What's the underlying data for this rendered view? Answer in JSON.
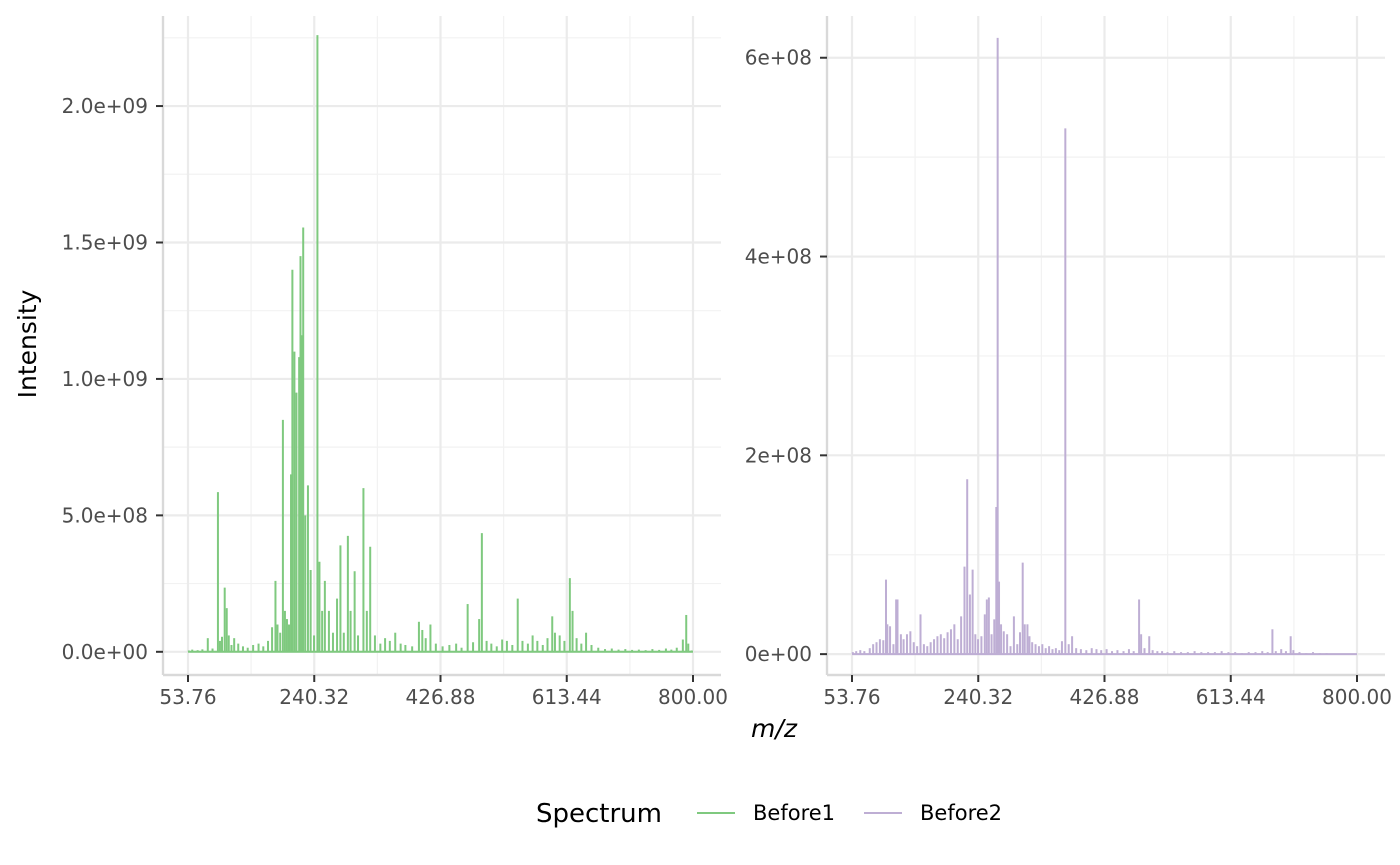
{
  "chart_data": {
    "type": "line",
    "xlabel": "m/z",
    "ylabel": "Intensity",
    "x_ticks": [
      "53.76",
      "240.32",
      "426.88",
      "613.44",
      "800.00"
    ],
    "x_tick_values": [
      53.76,
      240.32,
      426.88,
      613.44,
      800.0
    ],
    "xlim": [
      53.76,
      800.0
    ],
    "legend": {
      "title": "Spectrum",
      "placement": "bottom",
      "entries": [
        "Before1",
        "Before2"
      ]
    },
    "grid": true,
    "panels": [
      {
        "series_name": "Before1",
        "color": "#7fc97f",
        "y_ticks": [
          "0.0e+00",
          "5.0e+08",
          "1.0e+09",
          "1.5e+09",
          "2.0e+09"
        ],
        "y_tick_values": [
          0,
          500000000,
          1000000000,
          1500000000,
          2000000000
        ],
        "ylim": [
          -85000000,
          2330000000
        ],
        "peaks": [
          [
            55,
            5000000
          ],
          [
            60,
            8000000
          ],
          [
            68,
            6000000
          ],
          [
            75,
            9000000
          ],
          [
            83,
            50000000
          ],
          [
            90,
            12000000
          ],
          [
            98,
            585000000
          ],
          [
            101,
            40000000
          ],
          [
            104,
            55000000
          ],
          [
            108,
            235000000
          ],
          [
            111,
            160000000
          ],
          [
            114,
            60000000
          ],
          [
            118,
            25000000
          ],
          [
            122,
            50000000
          ],
          [
            128,
            30000000
          ],
          [
            135,
            20000000
          ],
          [
            142,
            15000000
          ],
          [
            150,
            25000000
          ],
          [
            158,
            30000000
          ],
          [
            165,
            20000000
          ],
          [
            172,
            40000000
          ],
          [
            178,
            90000000
          ],
          [
            183,
            260000000
          ],
          [
            186,
            100000000
          ],
          [
            190,
            70000000
          ],
          [
            194,
            850000000
          ],
          [
            197,
            150000000
          ],
          [
            200,
            120000000
          ],
          [
            203,
            100000000
          ],
          [
            206,
            650000000
          ],
          [
            208,
            1400000000
          ],
          [
            211,
            1100000000
          ],
          [
            214,
            950000000
          ],
          [
            218,
            1080000000
          ],
          [
            220,
            1450000000
          ],
          [
            222,
            1160000000
          ],
          [
            224,
            1555000000
          ],
          [
            227,
            500000000
          ],
          [
            231,
            610000000
          ],
          [
            235,
            300000000
          ],
          [
            240,
            60000000
          ],
          [
            245,
            2260000000
          ],
          [
            248,
            330000000
          ],
          [
            252,
            150000000
          ],
          [
            256,
            260000000
          ],
          [
            262,
            150000000
          ],
          [
            268,
            70000000
          ],
          [
            274,
            195000000
          ],
          [
            279,
            390000000
          ],
          [
            284,
            70000000
          ],
          [
            290,
            425000000
          ],
          [
            294,
            150000000
          ],
          [
            300,
            295000000
          ],
          [
            305,
            60000000
          ],
          [
            313,
            600000000
          ],
          [
            318,
            150000000
          ],
          [
            323,
            385000000
          ],
          [
            330,
            60000000
          ],
          [
            338,
            30000000
          ],
          [
            345,
            50000000
          ],
          [
            352,
            40000000
          ],
          [
            360,
            70000000
          ],
          [
            368,
            30000000
          ],
          [
            375,
            25000000
          ],
          [
            385,
            20000000
          ],
          [
            395,
            110000000
          ],
          [
            400,
            80000000
          ],
          [
            405,
            50000000
          ],
          [
            412,
            100000000
          ],
          [
            420,
            30000000
          ],
          [
            430,
            20000000
          ],
          [
            440,
            25000000
          ],
          [
            450,
            30000000
          ],
          [
            458,
            15000000
          ],
          [
            467,
            175000000
          ],
          [
            475,
            35000000
          ],
          [
            484,
            120000000
          ],
          [
            488,
            435000000
          ],
          [
            495,
            40000000
          ],
          [
            502,
            30000000
          ],
          [
            510,
            20000000
          ],
          [
            518,
            45000000
          ],
          [
            525,
            40000000
          ],
          [
            533,
            25000000
          ],
          [
            541,
            195000000
          ],
          [
            548,
            40000000
          ],
          [
            556,
            30000000
          ],
          [
            563,
            60000000
          ],
          [
            570,
            40000000
          ],
          [
            578,
            25000000
          ],
          [
            585,
            50000000
          ],
          [
            592,
            130000000
          ],
          [
            596,
            70000000
          ],
          [
            603,
            60000000
          ],
          [
            610,
            40000000
          ],
          [
            618,
            270000000
          ],
          [
            622,
            150000000
          ],
          [
            628,
            50000000
          ],
          [
            635,
            30000000
          ],
          [
            642,
            70000000
          ],
          [
            650,
            25000000
          ],
          [
            660,
            15000000
          ],
          [
            670,
            10000000
          ],
          [
            680,
            12000000
          ],
          [
            690,
            8000000
          ],
          [
            700,
            10000000
          ],
          [
            710,
            7000000
          ],
          [
            720,
            8000000
          ],
          [
            730,
            6000000
          ],
          [
            740,
            10000000
          ],
          [
            750,
            7000000
          ],
          [
            760,
            12000000
          ],
          [
            768,
            8000000
          ],
          [
            776,
            15000000
          ],
          [
            785,
            45000000
          ],
          [
            790,
            135000000
          ],
          [
            793,
            30000000
          ],
          [
            798,
            5000000
          ]
        ]
      },
      {
        "series_name": "Before2",
        "color": "#beaed4",
        "y_ticks": [
          "0e+00",
          "2e+08",
          "4e+08",
          "6e+08"
        ],
        "y_tick_values": [
          0,
          200000000,
          400000000,
          600000000
        ],
        "ylim": [
          -21000000,
          642000000
        ],
        "peaks": [
          [
            55,
            2000000
          ],
          [
            60,
            3000000
          ],
          [
            66,
            4000000
          ],
          [
            72,
            3000000
          ],
          [
            80,
            6000000
          ],
          [
            85,
            10000000
          ],
          [
            90,
            12000000
          ],
          [
            95,
            15000000
          ],
          [
            100,
            14000000
          ],
          [
            104,
            75000000
          ],
          [
            106,
            30000000
          ],
          [
            110,
            28000000
          ],
          [
            115,
            10000000
          ],
          [
            119,
            55000000
          ],
          [
            121,
            55000000
          ],
          [
            126,
            20000000
          ],
          [
            130,
            15000000
          ],
          [
            135,
            20000000
          ],
          [
            140,
            23000000
          ],
          [
            145,
            12000000
          ],
          [
            150,
            8000000
          ],
          [
            155,
            40000000
          ],
          [
            160,
            10000000
          ],
          [
            165,
            8000000
          ],
          [
            170,
            12000000
          ],
          [
            175,
            15000000
          ],
          [
            180,
            18000000
          ],
          [
            185,
            20000000
          ],
          [
            190,
            16000000
          ],
          [
            195,
            22000000
          ],
          [
            200,
            25000000
          ],
          [
            205,
            30000000
          ],
          [
            210,
            15000000
          ],
          [
            215,
            38000000
          ],
          [
            220,
            88000000
          ],
          [
            224,
            176000000
          ],
          [
            228,
            60000000
          ],
          [
            232,
            85000000
          ],
          [
            236,
            20000000
          ],
          [
            240,
            15000000
          ],
          [
            245,
            18000000
          ],
          [
            250,
            40000000
          ],
          [
            253,
            55000000
          ],
          [
            256,
            57000000
          ],
          [
            260,
            20000000
          ],
          [
            264,
            35000000
          ],
          [
            267,
            148000000
          ],
          [
            269,
            620000000
          ],
          [
            271,
            73000000
          ],
          [
            274,
            30000000
          ],
          [
            278,
            23000000
          ],
          [
            283,
            20000000
          ],
          [
            288,
            8000000
          ],
          [
            293,
            38000000
          ],
          [
            298,
            10000000
          ],
          [
            302,
            22000000
          ],
          [
            306,
            92000000
          ],
          [
            309,
            30000000
          ],
          [
            313,
            30000000
          ],
          [
            316,
            18000000
          ],
          [
            320,
            12000000
          ],
          [
            325,
            10000000
          ],
          [
            330,
            8000000
          ],
          [
            335,
            10000000
          ],
          [
            340,
            6000000
          ],
          [
            345,
            8000000
          ],
          [
            350,
            5000000
          ],
          [
            355,
            6000000
          ],
          [
            360,
            4000000
          ],
          [
            364,
            13000000
          ],
          [
            369,
            529000000
          ],
          [
            374,
            10000000
          ],
          [
            379,
            18000000
          ],
          [
            385,
            6000000
          ],
          [
            392,
            5000000
          ],
          [
            400,
            4000000
          ],
          [
            408,
            6000000
          ],
          [
            415,
            5000000
          ],
          [
            422,
            4000000
          ],
          [
            430,
            5000000
          ],
          [
            438,
            3000000
          ],
          [
            446,
            4000000
          ],
          [
            455,
            3000000
          ],
          [
            463,
            5000000
          ],
          [
            470,
            3000000
          ],
          [
            478,
            55000000
          ],
          [
            481,
            20000000
          ],
          [
            486,
            6000000
          ],
          [
            493,
            18000000
          ],
          [
            498,
            4000000
          ],
          [
            505,
            3000000
          ],
          [
            512,
            3000000
          ],
          [
            520,
            2000000
          ],
          [
            530,
            3000000
          ],
          [
            540,
            2000000
          ],
          [
            550,
            2000000
          ],
          [
            560,
            3000000
          ],
          [
            570,
            2000000
          ],
          [
            580,
            2000000
          ],
          [
            590,
            2000000
          ],
          [
            600,
            3000000
          ],
          [
            610,
            2000000
          ],
          [
            620,
            2000000
          ],
          [
            630,
            1000000
          ],
          [
            640,
            2000000
          ],
          [
            650,
            2000000
          ],
          [
            660,
            3000000
          ],
          [
            668,
            2000000
          ],
          [
            675,
            25000000
          ],
          [
            680,
            3000000
          ],
          [
            688,
            5000000
          ],
          [
            695,
            3000000
          ],
          [
            702,
            18000000
          ],
          [
            706,
            4000000
          ],
          [
            715,
            2000000
          ],
          [
            725,
            1000000
          ],
          [
            735,
            2000000
          ],
          [
            745,
            1000000
          ],
          [
            755,
            1000000
          ]
        ]
      }
    ]
  }
}
